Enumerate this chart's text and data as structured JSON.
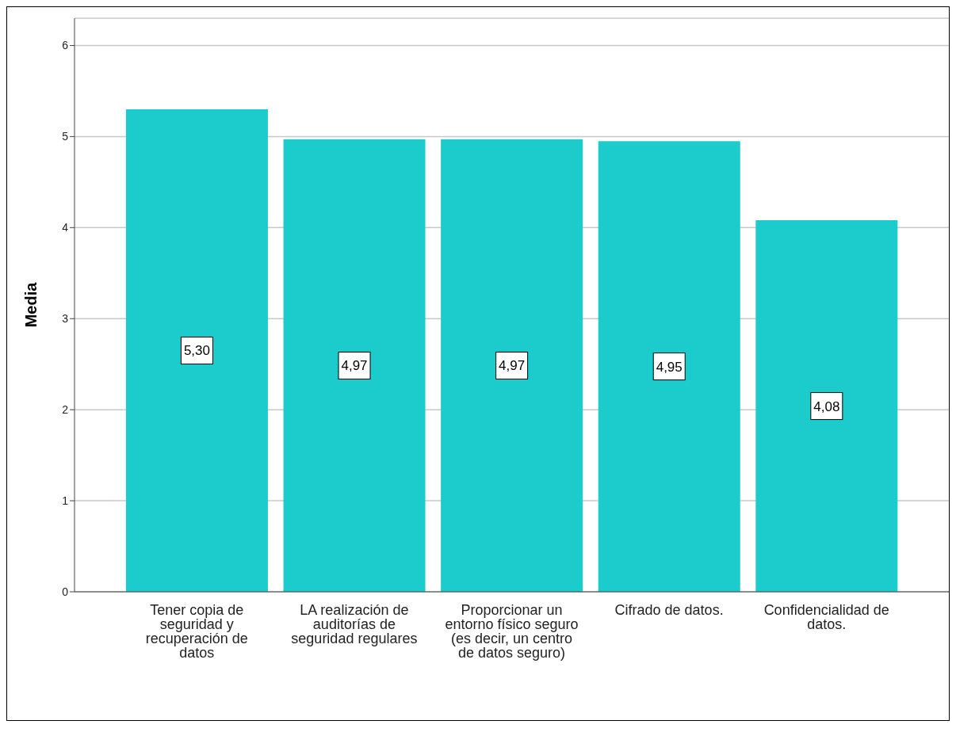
{
  "chart_data": {
    "type": "bar",
    "ylabel": "Media",
    "categories": [
      "Tener copia de seguridad y recuperación de datos",
      "LA realización de auditorías de seguridad regulares",
      "Proporcionar un entorno físico seguro (es decir, un centro de datos seguro)",
      "Cifrado de datos.",
      "Confidencialidad de datos."
    ],
    "values": [
      5.3,
      4.97,
      4.97,
      4.95,
      4.08
    ],
    "value_labels": [
      "5,30",
      "4,97",
      "4,97",
      "4,95",
      "4,08"
    ],
    "color": "#1ccbcb",
    "ylim": [
      0,
      6.3
    ],
    "yticks": [
      0,
      1,
      2,
      3,
      4,
      5,
      6
    ],
    "grid": "y"
  }
}
